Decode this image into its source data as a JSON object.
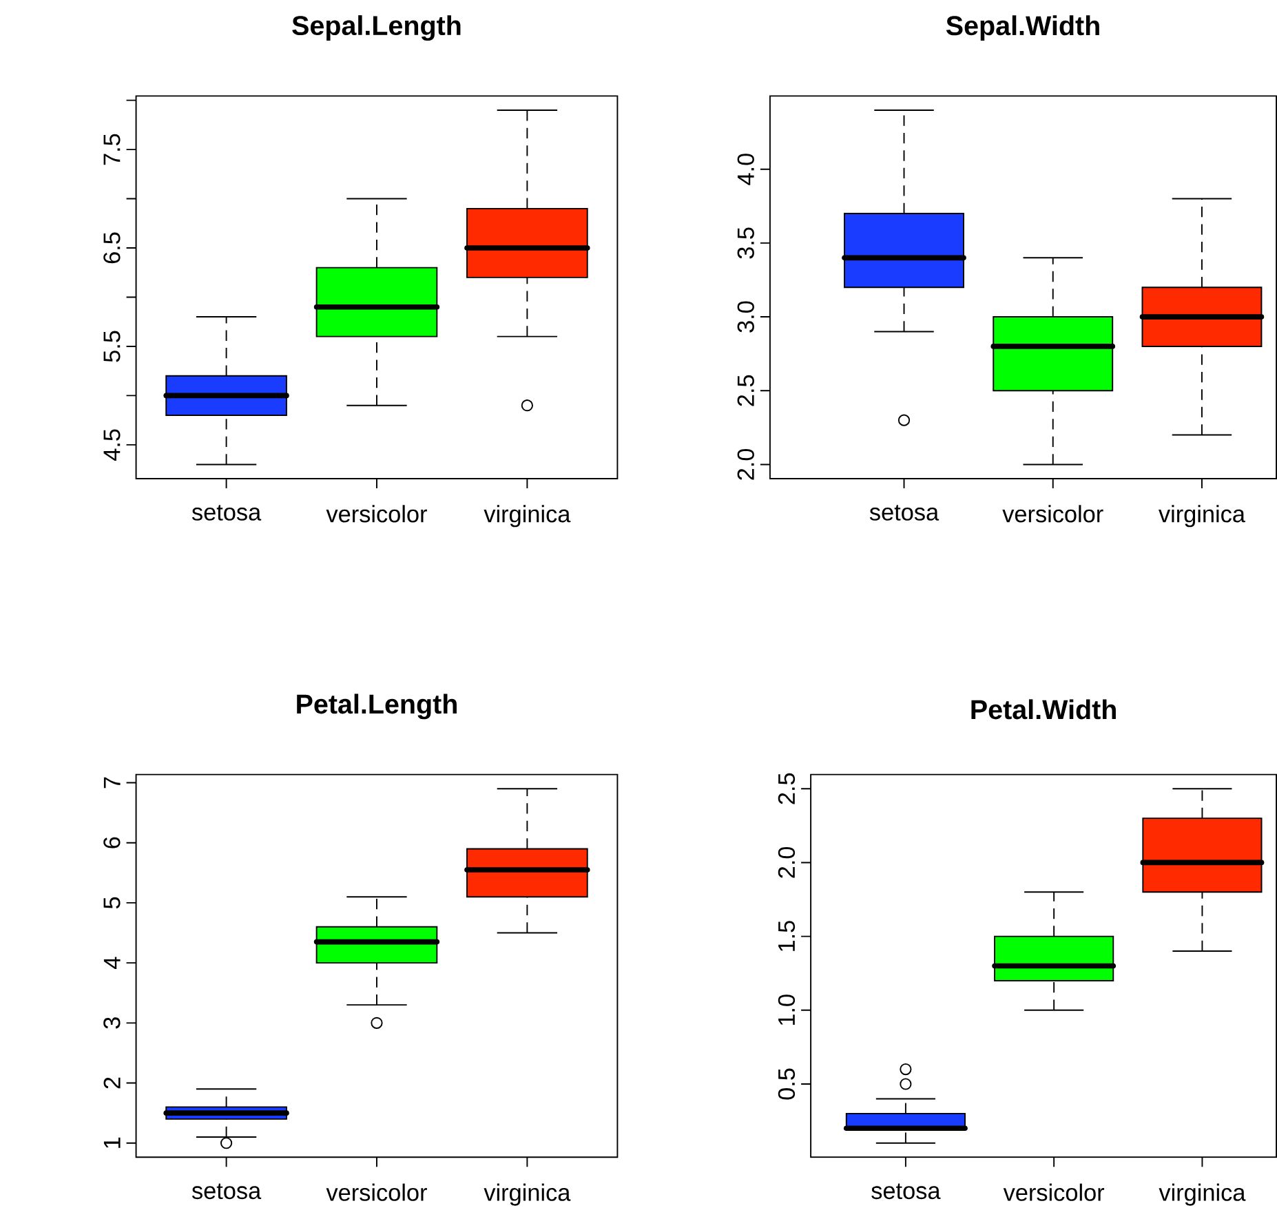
{
  "chart_data": [
    {
      "type": "box",
      "title": "Sepal.Length",
      "categories": [
        "setosa",
        "versicolor",
        "virginica"
      ],
      "colors": [
        "#1a3cff",
        "#00ff00",
        "#ff2a00"
      ],
      "boxes": [
        {
          "low": 4.3,
          "q1": 4.8,
          "median": 5.0,
          "q3": 5.2,
          "high": 5.8
        },
        {
          "low": 4.9,
          "q1": 5.6,
          "median": 5.9,
          "q3": 6.3,
          "high": 7.0
        },
        {
          "low": 5.6,
          "q1": 6.2,
          "median": 6.5,
          "q3": 6.9,
          "high": 7.9,
          "outliers": [
            4.9
          ]
        }
      ],
      "ylim": [
        4.156,
        8.044
      ],
      "yticks": [
        4.5,
        {
          "value": 5,
          "label": null
        },
        5.5,
        {
          "value": 6,
          "label": null
        },
        6.5,
        {
          "value": 7,
          "label": null
        },
        7.5,
        {
          "value": 8,
          "label": null
        }
      ]
    },
    {
      "type": "box",
      "title": "Sepal.Width",
      "categories": [
        "setosa",
        "versicolor",
        "virginica"
      ],
      "colors": [
        "#1a3cff",
        "#00ff00",
        "#ff2a00"
      ],
      "boxes": [
        {
          "low": 2.9,
          "q1": 3.2,
          "median": 3.4,
          "q3": 3.7,
          "high": 4.4,
          "outliers": [
            2.3
          ]
        },
        {
          "low": 2.0,
          "q1": 2.5,
          "median": 2.8,
          "q3": 3.0,
          "high": 3.4
        },
        {
          "low": 2.2,
          "q1": 2.8,
          "median": 3.0,
          "q3": 3.2,
          "high": 3.8
        }
      ],
      "ylim": [
        1.904,
        4.496
      ],
      "yticks": [
        {
          "value": 2,
          "label": "2.0"
        },
        2.5,
        {
          "value": 3,
          "label": "3.0"
        },
        3.5,
        {
          "value": 4,
          "label": "4.0"
        }
      ]
    },
    {
      "type": "box",
      "title": "Petal.Length",
      "categories": [
        "setosa",
        "versicolor",
        "virginica"
      ],
      "colors": [
        "#1a3cff",
        "#00ff00",
        "#ff2a00"
      ],
      "boxes": [
        {
          "low": 1.1,
          "q1": 1.4,
          "median": 1.5,
          "q3": 1.6,
          "high": 1.9,
          "outliers": [
            1.0
          ]
        },
        {
          "low": 3.3,
          "q1": 4.0,
          "median": 4.35,
          "q3": 4.6,
          "high": 5.1,
          "outliers": [
            3.0
          ]
        },
        {
          "low": 4.5,
          "q1": 5.1,
          "median": 5.55,
          "q3": 5.9,
          "high": 6.9
        }
      ],
      "ylim": [
        0.764,
        7.136
      ],
      "yticks": [
        1,
        2,
        3,
        4,
        5,
        6,
        7
      ]
    },
    {
      "type": "box",
      "title": "Petal.Width",
      "categories": [
        "setosa",
        "versicolor",
        "virginica"
      ],
      "colors": [
        "#1a3cff",
        "#00ff00",
        "#ff2a00"
      ],
      "boxes": [
        {
          "low": 0.1,
          "q1": 0.2,
          "median": 0.2,
          "q3": 0.3,
          "high": 0.4,
          "outliers": [
            0.5,
            0.6
          ]
        },
        {
          "low": 1.0,
          "q1": 1.2,
          "median": 1.3,
          "q3": 1.5,
          "high": 1.8
        },
        {
          "low": 1.4,
          "q1": 1.8,
          "median": 2.0,
          "q3": 2.3,
          "high": 2.5
        }
      ],
      "ylim": [
        0.004,
        2.596
      ],
      "yticks": [
        0.5,
        {
          "value": 1,
          "label": "1.0"
        },
        1.5,
        {
          "value": 2,
          "label": "2.0"
        },
        2.5
      ]
    }
  ]
}
